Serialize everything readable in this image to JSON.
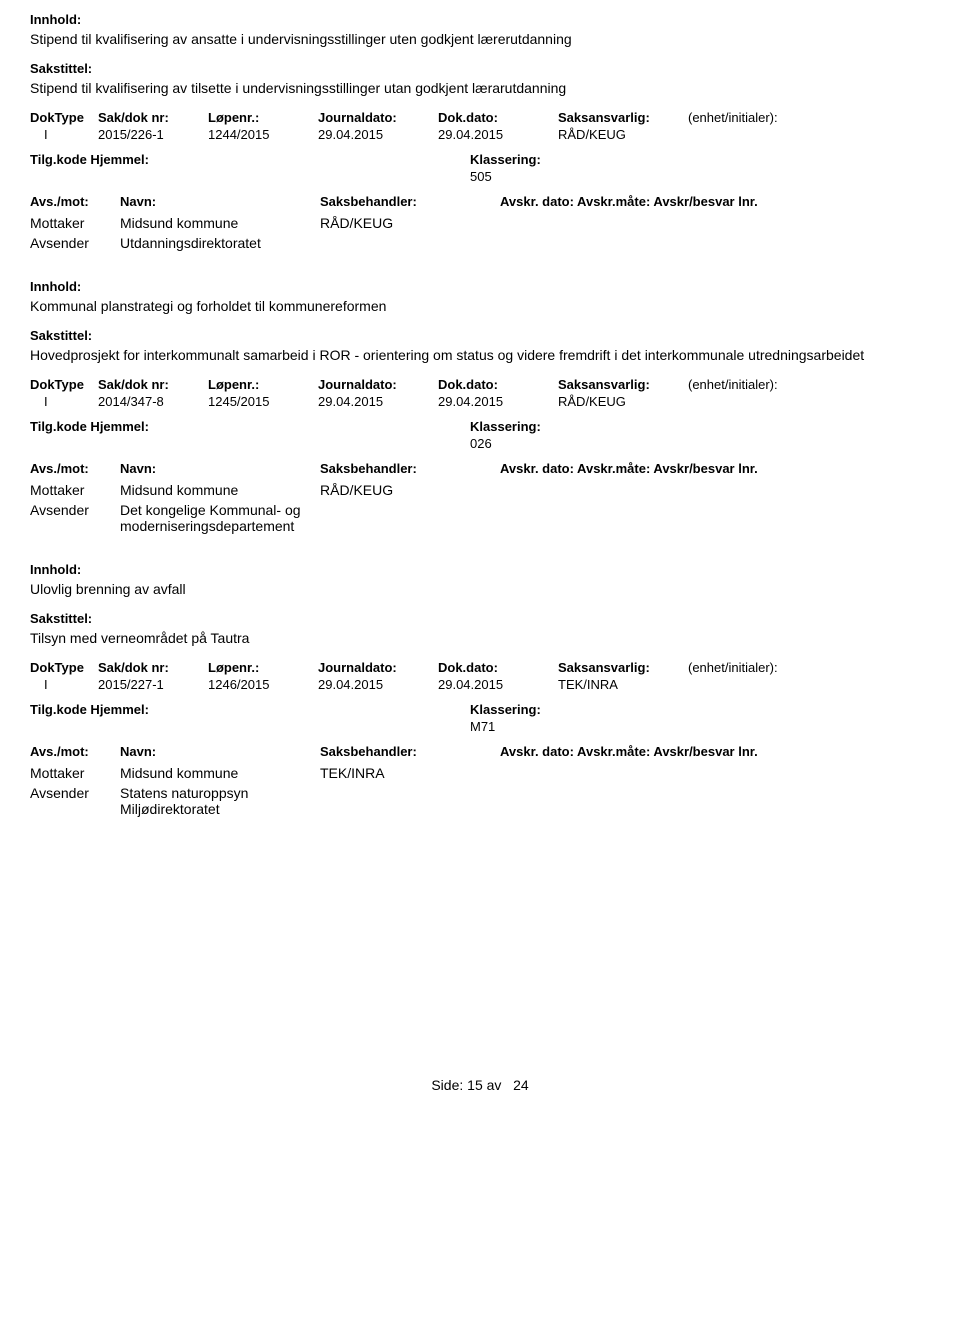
{
  "labels": {
    "innhold": "Innhold:",
    "sakstittel": "Sakstittel:",
    "doktype": "DokType",
    "sakdoknr": "Sak/dok nr:",
    "lopenr": "Løpenr.:",
    "journaldato": "Journaldato:",
    "dokdato": "Dok.dato:",
    "saksansvarlig": "Saksansvarlig:",
    "enhet": "(enhet/initialer):",
    "tilgkode": "Tilg.kode",
    "hjemmel": "Hjemmel:",
    "klassering": "Klassering:",
    "avsmot": "Avs./mot:",
    "navn": "Navn:",
    "saksbehandler": "Saksbehandler:",
    "avskr": "Avskr. dato: Avskr.måte: Avskr/besvar lnr.",
    "mottaker": "Mottaker",
    "avsender": "Avsender"
  },
  "entries": [
    {
      "innhold": "Stipend til kvalifisering av ansatte i undervisningsstillinger uten godkjent lærerutdanning",
      "sakstittel": "Stipend til kvalifisering av tilsette i undervisningsstillinger utan godkjent lærarutdanning",
      "doktype": "I",
      "sakdoknr": "2015/226-1",
      "lopenr": "1244/2015",
      "journaldato": "29.04.2015",
      "dokdato": "29.04.2015",
      "saksansvarlig": "RÅD/KEUG",
      "enhet": "",
      "klassering": "505",
      "mottaker_name": "Midsund kommune",
      "mottaker_handler": "RÅD/KEUG",
      "avsender_name": "Utdanningsdirektoratet"
    },
    {
      "innhold": "Kommunal planstrategi og forholdet til kommunereformen",
      "sakstittel": "Hovedprosjekt for interkommunalt samarbeid i ROR - orientering om status og videre fremdrift i det interkommunale utredningsarbeidet",
      "doktype": "I",
      "sakdoknr": "2014/347-8",
      "lopenr": "1245/2015",
      "journaldato": "29.04.2015",
      "dokdato": "29.04.2015",
      "saksansvarlig": "RÅD/KEUG",
      "enhet": "",
      "klassering": "026",
      "mottaker_name": "Midsund kommune",
      "mottaker_handler": "RÅD/KEUG",
      "avsender_name": "Det kongelige Kommunal- og moderniseringsdepartement"
    },
    {
      "innhold": "Ulovlig brenning av avfall",
      "sakstittel": "Tilsyn med verneområdet på Tautra",
      "doktype": "I",
      "sakdoknr": "2015/227-1",
      "lopenr": "1246/2015",
      "journaldato": "29.04.2015",
      "dokdato": "29.04.2015",
      "saksansvarlig": "TEK/INRA",
      "enhet": "",
      "klassering": "M71",
      "mottaker_name": "Midsund kommune",
      "mottaker_handler": "TEK/INRA",
      "avsender_name": "Statens naturoppsyn Miljødirektoratet"
    }
  ],
  "footer": {
    "prefix": "Side:",
    "page": "15 av",
    "total": "24"
  }
}
